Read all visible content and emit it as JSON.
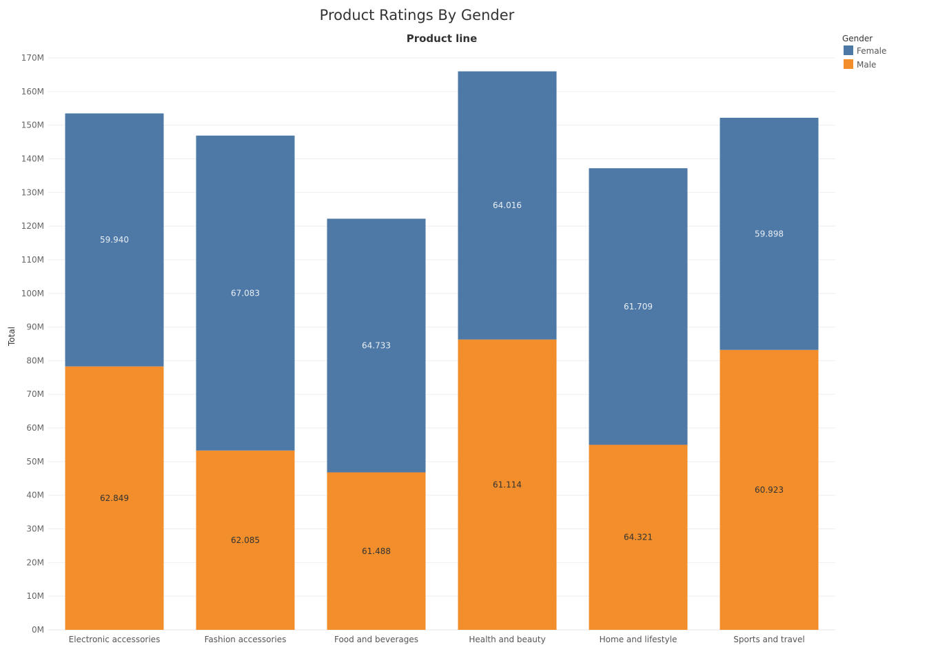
{
  "chart_data": {
    "type": "bar",
    "stacked": true,
    "title": "Product Ratings By Gender",
    "column_header": "Product line",
    "ylabel": "Total",
    "ylim": [
      0,
      170
    ],
    "y_unit_suffix": "M",
    "y_ticks": [
      "0M",
      "10M",
      "20M",
      "30M",
      "40M",
      "50M",
      "60M",
      "70M",
      "80M",
      "90M",
      "100M",
      "110M",
      "120M",
      "130M",
      "140M",
      "150M",
      "160M",
      "170M"
    ],
    "categories": [
      "Electronic accessories",
      "Fashion accessories",
      "Food and beverages",
      "Health and beauty",
      "Home and lifestyle",
      "Sports and travel"
    ],
    "series": [
      {
        "name": "Male",
        "color": "#F28E2B",
        "values": [
          78.3,
          53.3,
          46.8,
          86.3,
          55.0,
          83.2
        ],
        "labels": [
          "62.849",
          "62.085",
          "61.488",
          "61.114",
          "64.321",
          "60.923"
        ]
      },
      {
        "name": "Female",
        "color": "#4E79A7",
        "values": [
          75.2,
          93.6,
          75.4,
          79.7,
          82.2,
          69.0
        ],
        "labels": [
          "59.940",
          "67.083",
          "64.733",
          "64.016",
          "61.709",
          "59.898"
        ]
      }
    ],
    "legend": {
      "title": "Gender",
      "position": "top-right",
      "entries": [
        {
          "name": "Female",
          "color": "#4E79A7"
        },
        {
          "name": "Male",
          "color": "#F28E2B"
        }
      ]
    },
    "grid": true
  }
}
